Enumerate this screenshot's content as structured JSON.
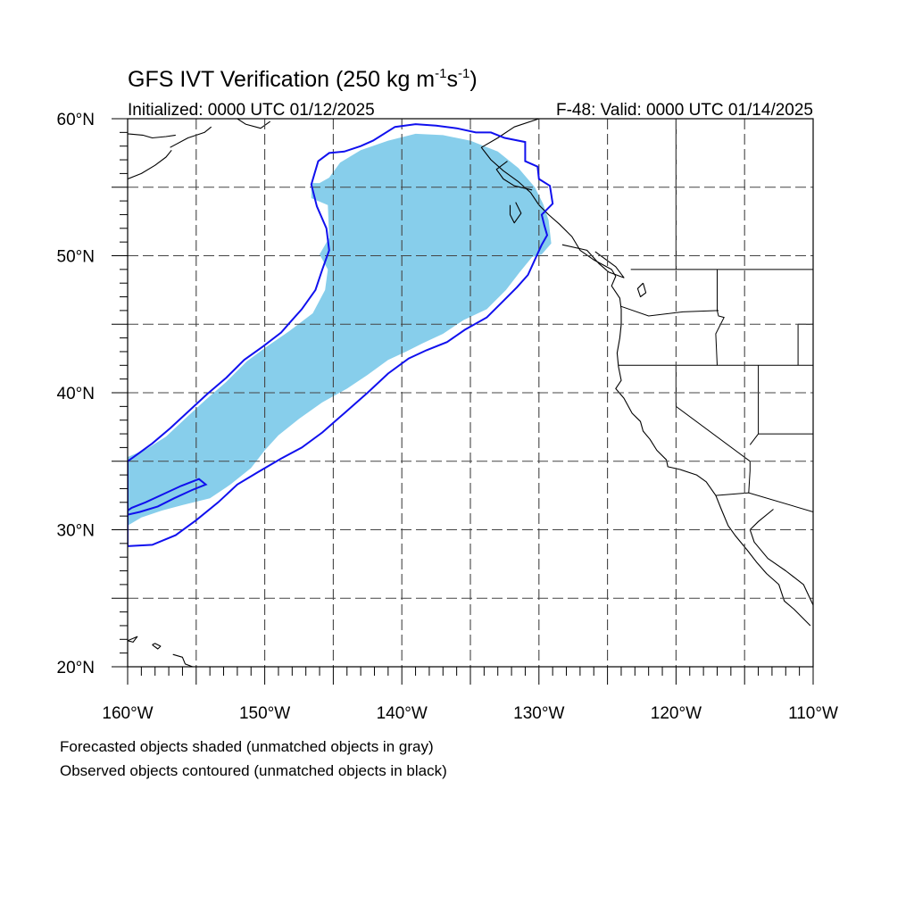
{
  "title": {
    "main": "GFS IVT Verification (250 kg m",
    "sup1": "-1",
    "mid": "s",
    "sup2": "-1",
    "end": ")"
  },
  "initialized": "Initialized: 0000 UTC 01/12/2025",
  "valid": "F-48: Valid: 0000 UTC 01/14/2025",
  "map": {
    "lon_range": [
      -160,
      -110
    ],
    "lat_range": [
      20,
      60
    ],
    "projection": "cylindrical equidistant",
    "grid": true,
    "grid_spacing_lon": 5,
    "grid_spacing_lat": 5,
    "lat_labels": [
      {
        "lat": 60,
        "text": "60°N"
      },
      {
        "lat": 50,
        "text": "50°N"
      },
      {
        "lat": 40,
        "text": "40°N"
      },
      {
        "lat": 30,
        "text": "30°N"
      },
      {
        "lat": 20,
        "text": "20°N"
      }
    ],
    "lon_labels": [
      {
        "lon": -160,
        "text": "160°W"
      },
      {
        "lon": -150,
        "text": "150°W"
      },
      {
        "lon": -140,
        "text": "140°W"
      },
      {
        "lon": -130,
        "text": "130°W"
      },
      {
        "lon": -120,
        "text": "120°W"
      },
      {
        "lon": -110,
        "text": "110°W"
      }
    ],
    "colors": {
      "forecast_object": "#87ceeb",
      "observed_contour": "#1010ee",
      "coastline": "#000000",
      "grid": "#444444"
    }
  },
  "forecast_object_outline": [
    [
      -160,
      30.3
    ],
    [
      -159,
      30.9
    ],
    [
      -157.5,
      31.4
    ],
    [
      -156,
      31.8
    ],
    [
      -154,
      32.3
    ],
    [
      -152.5,
      33.3
    ],
    [
      -151,
      34.5
    ],
    [
      -150,
      35.8
    ],
    [
      -149,
      36.9
    ],
    [
      -147.5,
      38.1
    ],
    [
      -145.8,
      39.3
    ],
    [
      -144,
      40.3
    ],
    [
      -142.5,
      41.3
    ],
    [
      -141,
      42.4
    ],
    [
      -139.7,
      43.0
    ],
    [
      -138.5,
      43.6
    ],
    [
      -137,
      44.3
    ],
    [
      -135.5,
      45.3
    ],
    [
      -133.8,
      46.1
    ],
    [
      -132.4,
      47.5
    ],
    [
      -131.4,
      48.8
    ],
    [
      -130.5,
      49.9
    ],
    [
      -129.8,
      50.1
    ],
    [
      -129.1,
      50.9
    ],
    [
      -129.3,
      52.6
    ],
    [
      -129.7,
      53.8
    ],
    [
      -130.3,
      55.0
    ],
    [
      -131.5,
      56.4
    ],
    [
      -133,
      57.6
    ],
    [
      -135,
      58.4
    ],
    [
      -137,
      58.8
    ],
    [
      -139,
      58.9
    ],
    [
      -141,
      58.4
    ],
    [
      -143,
      57.7
    ],
    [
      -144.5,
      56.8
    ],
    [
      -145.3,
      55.7
    ],
    [
      -146.0,
      55.3
    ],
    [
      -146.6,
      55.3
    ],
    [
      -146.6,
      54.2
    ],
    [
      -145.4,
      53.7
    ],
    [
      -145.3,
      51.3
    ],
    [
      -146.0,
      50.1
    ],
    [
      -145.4,
      49.0
    ],
    [
      -145.6,
      47.5
    ],
    [
      -146.5,
      45.8
    ],
    [
      -148.2,
      44.5
    ],
    [
      -149.8,
      43.4
    ],
    [
      -151.3,
      42.3
    ],
    [
      -152.8,
      40.8
    ],
    [
      -154.3,
      39.5
    ],
    [
      -155.7,
      38.2
    ],
    [
      -157.2,
      36.8
    ],
    [
      -158.6,
      35.9
    ],
    [
      -160,
      35.3
    ]
  ],
  "observed_outer_contour": [
    [
      -160,
      28.8
    ],
    [
      -158.2,
      28.9
    ],
    [
      -156.5,
      29.6
    ],
    [
      -155,
      30.7
    ],
    [
      -153.4,
      32.0
    ],
    [
      -152,
      33.3
    ],
    [
      -150.5,
      34.2
    ],
    [
      -148.8,
      35.2
    ],
    [
      -147.3,
      36.0
    ],
    [
      -145.8,
      37.1
    ],
    [
      -144.2,
      38.5
    ],
    [
      -142.5,
      40.0
    ],
    [
      -141,
      41.4
    ],
    [
      -139.5,
      42.5
    ],
    [
      -138.2,
      43.1
    ],
    [
      -136.7,
      43.7
    ],
    [
      -135.4,
      44.6
    ],
    [
      -133.8,
      45.5
    ],
    [
      -132.6,
      46.7
    ],
    [
      -131.6,
      47.7
    ],
    [
      -130.8,
      48.6
    ],
    [
      -130.3,
      49.7
    ],
    [
      -129.8,
      50.8
    ],
    [
      -129.4,
      51.5
    ],
    [
      -129.6,
      52.2
    ],
    [
      -129.8,
      53.0
    ],
    [
      -129.0,
      53.8
    ],
    [
      -129.2,
      55.1
    ],
    [
      -130,
      55.6
    ],
    [
      -130.1,
      56.5
    ],
    [
      -131,
      56.9
    ],
    [
      -131.0,
      58.3
    ],
    [
      -132.5,
      58.6
    ],
    [
      -133.5,
      59.0
    ],
    [
      -134.6,
      59.0
    ],
    [
      -136,
      59.3
    ],
    [
      -137.5,
      59.5
    ],
    [
      -139,
      59.6
    ],
    [
      -140.5,
      59.4
    ],
    [
      -142.1,
      58.4
    ],
    [
      -143.0,
      58.0
    ],
    [
      -144.2,
      57.6
    ],
    [
      -145.3,
      57.5
    ],
    [
      -146.1,
      56.9
    ],
    [
      -146.6,
      55.2
    ],
    [
      -146.2,
      53.6
    ],
    [
      -145.5,
      52.0
    ],
    [
      -145.3,
      50.4
    ],
    [
      -145.8,
      49.0
    ],
    [
      -146.3,
      47.5
    ],
    [
      -147.3,
      46.1
    ],
    [
      -148.1,
      45.2
    ],
    [
      -148.8,
      44.4
    ],
    [
      -150.1,
      43.4
    ],
    [
      -151.5,
      42.4
    ],
    [
      -152.8,
      41.1
    ],
    [
      -154.2,
      39.9
    ],
    [
      -155.5,
      38.7
    ],
    [
      -156.9,
      37.4
    ],
    [
      -158.2,
      36.3
    ],
    [
      -159.3,
      35.5
    ],
    [
      -160,
      35.0
    ]
  ],
  "observed_inner_contour": [
    [
      -160,
      31.1
    ],
    [
      -159.1,
      31.3
    ],
    [
      -157.8,
      31.7
    ],
    [
      -156.6,
      32.3
    ],
    [
      -155.3,
      32.9
    ],
    [
      -154.3,
      33.3
    ],
    [
      -154.8,
      33.7
    ],
    [
      -156.1,
      33.2
    ],
    [
      -157.4,
      32.6
    ],
    [
      -158.7,
      32.0
    ],
    [
      -159.7,
      31.6
    ],
    [
      -160,
      31.4
    ]
  ],
  "coastlines": [
    [
      [
        -160,
        55.6
      ],
      [
        -159,
        56.0
      ],
      [
        -158,
        56.6
      ],
      [
        -157.2,
        57.2
      ],
      [
        -156.8,
        57.7
      ]
    ],
    [
      [
        -160,
        58.9
      ],
      [
        -158.9,
        58.8
      ],
      [
        -158.2,
        58.6
      ],
      [
        -157.2,
        58.7
      ],
      [
        -156.5,
        58.8
      ]
    ],
    [
      [
        -156.9,
        57.9
      ],
      [
        -155.6,
        58.6
      ],
      [
        -154.4,
        59.0
      ],
      [
        -153.9,
        59.4
      ]
    ],
    [
      [
        -152,
        60.0
      ],
      [
        -151.4,
        59.6
      ],
      [
        -150.3,
        59.3
      ],
      [
        -149.6,
        59.8
      ]
    ],
    [
      [
        -130.0,
        60.0
      ],
      [
        -131.8,
        59.4
      ],
      [
        -133.0,
        58.6
      ],
      [
        -134.2,
        57.9
      ],
      [
        -133.5,
        57.0
      ],
      [
        -132.6,
        56.2
      ],
      [
        -131.5,
        55.4
      ],
      [
        -130.6,
        54.6
      ],
      [
        -130.0,
        53.7
      ],
      [
        -129.3,
        53.0
      ],
      [
        -128.5,
        52.3
      ],
      [
        -127.6,
        51.4
      ],
      [
        -127.0,
        50.4
      ],
      [
        -126.0,
        49.7
      ],
      [
        -124.7,
        49.0
      ],
      [
        -124.4,
        48.5
      ],
      [
        -124.7,
        47.8
      ],
      [
        -124.1,
        46.9
      ],
      [
        -124.0,
        46.1
      ],
      [
        -124.0,
        45.0
      ],
      [
        -124.1,
        44.0
      ],
      [
        -124.3,
        42.9
      ],
      [
        -124.2,
        41.9
      ],
      [
        -124.0,
        40.9
      ],
      [
        -124.4,
        40.3
      ],
      [
        -123.8,
        39.6
      ],
      [
        -123.2,
        38.5
      ],
      [
        -122.6,
        37.9
      ],
      [
        -122.4,
        37.2
      ],
      [
        -121.9,
        36.6
      ],
      [
        -121.4,
        35.8
      ],
      [
        -120.7,
        35.1
      ],
      [
        -120.6,
        34.6
      ],
      [
        -119.7,
        34.4
      ],
      [
        -118.5,
        34.0
      ],
      [
        -117.8,
        33.5
      ],
      [
        -117.1,
        32.5
      ],
      [
        -116.7,
        31.5
      ],
      [
        -116.2,
        30.3
      ],
      [
        -115.7,
        29.6
      ],
      [
        -114.8,
        28.5
      ],
      [
        -114.1,
        27.6
      ],
      [
        -113.4,
        26.8
      ],
      [
        -112.5,
        26.0
      ],
      [
        -112.1,
        24.8
      ],
      [
        -111.4,
        24.2
      ],
      [
        -110.2,
        23.0
      ]
    ],
    [
      [
        -130.5,
        54.8
      ],
      [
        -131.8,
        55.1
      ],
      [
        -132.6,
        55.6
      ],
      [
        -133.1,
        56.3
      ],
      [
        -132.3,
        56.9
      ]
    ],
    [
      [
        -131.7,
        53.9
      ],
      [
        -131.3,
        53.1
      ],
      [
        -131.8,
        52.4
      ],
      [
        -132.1,
        53.0
      ],
      [
        -132.1,
        53.7
      ]
    ],
    [
      [
        -128.3,
        50.8
      ],
      [
        -126.5,
        50.4
      ],
      [
        -125.6,
        49.4
      ],
      [
        -124.9,
        48.8
      ],
      [
        -123.8,
        48.4
      ],
      [
        -124.4,
        49.2
      ],
      [
        -125.9,
        50.3
      ]
    ],
    [
      [
        -112.9,
        31.5
      ],
      [
        -114.0,
        30.6
      ],
      [
        -114.6,
        30.0
      ],
      [
        -114.3,
        29.1
      ],
      [
        -113.3,
        27.9
      ],
      [
        -112.0,
        27.0
      ],
      [
        -110.7,
        26.0
      ],
      [
        -110.0,
        24.5
      ],
      [
        -109.5,
        23.4
      ]
    ],
    [
      [
        -122.4,
        48.0
      ],
      [
        -122.8,
        47.6
      ],
      [
        -122.6,
        47.0
      ],
      [
        -122.2,
        47.3
      ],
      [
        -122.4,
        48.0
      ]
    ],
    [
      [
        -160,
        21.9
      ],
      [
        -159.3,
        22.2
      ],
      [
        -159.6,
        21.8
      ],
      [
        -160,
        21.9
      ]
    ],
    [
      [
        -158.2,
        21.6
      ],
      [
        -157.8,
        21.3
      ],
      [
        -157.6,
        21.5
      ],
      [
        -158.0,
        21.7
      ],
      [
        -158.2,
        21.6
      ]
    ],
    [
      [
        -156.7,
        20.9
      ],
      [
        -156.0,
        20.7
      ],
      [
        -155.8,
        20.2
      ],
      [
        -155.0,
        19.9
      ]
    ]
  ],
  "borders": [
    [
      [
        -123.3,
        49.0
      ],
      [
        -110,
        49.0
      ]
    ],
    [
      [
        -124.2,
        42.0
      ],
      [
        -110,
        42.0
      ]
    ],
    [
      [
        -117.0,
        49.0
      ],
      [
        -117.0,
        46.0
      ],
      [
        -116.9,
        45.6
      ],
      [
        -116.5,
        45.5
      ],
      [
        -117.1,
        44.3
      ],
      [
        -117.0,
        42.0
      ]
    ],
    [
      [
        -124.0,
        46.3
      ],
      [
        -122.0,
        45.6
      ],
      [
        -119.5,
        45.9
      ],
      [
        -116.9,
        46.0
      ]
    ],
    [
      [
        -120.0,
        42.0
      ],
      [
        -120.0,
        39.0
      ],
      [
        -114.6,
        35.0
      ],
      [
        -114.6,
        34.3
      ],
      [
        -114.7,
        32.7
      ]
    ],
    [
      [
        -114.0,
        42.0
      ],
      [
        -114.0,
        37.0
      ],
      [
        -114.6,
        36.2
      ]
    ],
    [
      [
        -114.0,
        37.0
      ],
      [
        -110,
        37.0
      ]
    ],
    [
      [
        -111.1,
        45.0
      ],
      [
        -110,
        45.0
      ]
    ],
    [
      [
        -111.1,
        45.0
      ],
      [
        -111.1,
        42.0
      ]
    ],
    [
      [
        -117.1,
        32.5
      ],
      [
        -114.7,
        32.7
      ],
      [
        -110,
        31.3
      ]
    ],
    [
      [
        -120.0,
        60.0
      ],
      [
        -120.0,
        49.0
      ]
    ]
  ],
  "footnotes": {
    "line1": "Forecasted objects shaded (unmatched objects in gray)",
    "line2": "Observed objects contoured (unmatched objects in black)"
  }
}
